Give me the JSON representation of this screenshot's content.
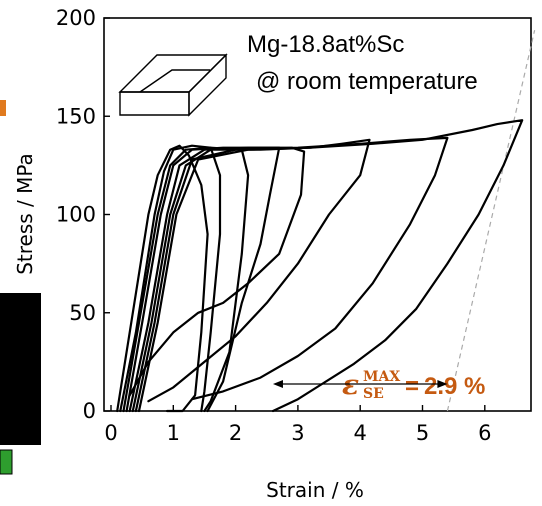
{
  "chart_data": {
    "type": "line",
    "title": "",
    "xlabel": "Strain / %",
    "ylabel": "Stress / MPa",
    "xlim": [
      0,
      7
    ],
    "ylim": [
      0,
      200
    ],
    "xticks": [
      "0",
      "1",
      "2",
      "3",
      "4",
      "5",
      "6"
    ],
    "yticks": [
      "0",
      "50",
      "100",
      "150",
      "200"
    ],
    "grid": false,
    "legend": "none",
    "annotations": {
      "material": "Mg-18.8at%Sc",
      "condition": "@ room temperature",
      "eps_symbol": "ε",
      "eps_sup": "MAX",
      "eps_sub": "SE",
      "eps_equals": "=",
      "eps_value": "2.9 %",
      "eps_range": [
        2.6,
        5.4
      ]
    },
    "colors": {
      "curve": "#000000",
      "highlight": "#C55A11",
      "dashed_line": "#aaaaaa"
    },
    "series": [
      {
        "values": [
          [
            0.1,
            0
          ],
          [
            0.3,
            40
          ],
          [
            0.6,
            100
          ],
          [
            0.75,
            120
          ],
          [
            0.95,
            133
          ],
          [
            1.1,
            135
          ],
          [
            1.25,
            130
          ],
          [
            1.45,
            115
          ],
          [
            1.55,
            90
          ],
          [
            1.45,
            40
          ],
          [
            1.35,
            8
          ],
          [
            1.15,
            0
          ],
          [
            0.9,
            0
          ]
        ]
      },
      {
        "values": [
          [
            0.15,
            0
          ],
          [
            0.4,
            40
          ],
          [
            0.7,
            100
          ],
          [
            0.85,
            122
          ],
          [
            1.0,
            133
          ],
          [
            1.3,
            135
          ],
          [
            1.6,
            134
          ],
          [
            1.75,
            120
          ],
          [
            1.75,
            90
          ],
          [
            1.6,
            40
          ],
          [
            1.5,
            10
          ],
          [
            1.45,
            0
          ]
        ]
      },
      {
        "values": [
          [
            0.2,
            0
          ],
          [
            0.45,
            45
          ],
          [
            0.75,
            100
          ],
          [
            0.95,
            125
          ],
          [
            1.2,
            133
          ],
          [
            1.6,
            134
          ],
          [
            2.1,
            133
          ],
          [
            2.2,
            120
          ],
          [
            2.1,
            80
          ],
          [
            1.9,
            30
          ],
          [
            1.6,
            5
          ],
          [
            1.5,
            0
          ]
        ]
      },
      {
        "values": [
          [
            0.25,
            0
          ],
          [
            0.5,
            45
          ],
          [
            0.8,
            100
          ],
          [
            1.0,
            125
          ],
          [
            1.3,
            133
          ],
          [
            1.8,
            134
          ],
          [
            2.4,
            134
          ],
          [
            2.7,
            134
          ],
          [
            2.55,
            110
          ],
          [
            2.4,
            85
          ],
          [
            2.1,
            55
          ],
          [
            1.8,
            15
          ],
          [
            1.55,
            0
          ]
        ]
      },
      {
        "values": [
          [
            0.3,
            0
          ],
          [
            0.6,
            45
          ],
          [
            0.9,
            100
          ],
          [
            1.1,
            125
          ],
          [
            1.5,
            133
          ],
          [
            2.2,
            134
          ],
          [
            2.9,
            134
          ],
          [
            3.1,
            132
          ],
          [
            3.05,
            110
          ],
          [
            2.7,
            80
          ],
          [
            2.2,
            65
          ],
          [
            1.8,
            55
          ],
          [
            1.4,
            50
          ],
          [
            1.0,
            40
          ],
          [
            0.6,
            25
          ],
          [
            0.3,
            8
          ]
        ]
      },
      {
        "values": [
          [
            0.35,
            0
          ],
          [
            0.65,
            45
          ],
          [
            0.95,
            100
          ],
          [
            1.2,
            125
          ],
          [
            1.6,
            133
          ],
          [
            2.4,
            133
          ],
          [
            3.2,
            134
          ],
          [
            3.7,
            136
          ],
          [
            4.15,
            138
          ],
          [
            4.0,
            120
          ],
          [
            3.5,
            100
          ],
          [
            3.0,
            75
          ],
          [
            2.5,
            55
          ],
          [
            2.0,
            38
          ],
          [
            1.5,
            25
          ],
          [
            1.0,
            12
          ],
          [
            0.6,
            5
          ]
        ]
      },
      {
        "values": [
          [
            0.4,
            0
          ],
          [
            0.7,
            45
          ],
          [
            1.0,
            100
          ],
          [
            1.3,
            128
          ],
          [
            2.0,
            133
          ],
          [
            3.0,
            134
          ],
          [
            4.0,
            136
          ],
          [
            4.8,
            138
          ],
          [
            5.4,
            139
          ],
          [
            5.2,
            120
          ],
          [
            4.8,
            95
          ],
          [
            4.2,
            65
          ],
          [
            3.6,
            42
          ],
          [
            3.0,
            28
          ],
          [
            2.4,
            17
          ],
          [
            1.8,
            10
          ],
          [
            1.3,
            6
          ]
        ]
      },
      {
        "values": [
          [
            0.45,
            0
          ],
          [
            0.75,
            45
          ],
          [
            1.05,
            100
          ],
          [
            1.4,
            128
          ],
          [
            2.2,
            133
          ],
          [
            3.2,
            134
          ],
          [
            4.2,
            136
          ],
          [
            5.0,
            138
          ],
          [
            5.8,
            143
          ],
          [
            6.2,
            146
          ],
          [
            6.6,
            148
          ],
          [
            6.3,
            125
          ],
          [
            5.9,
            100
          ],
          [
            5.4,
            75
          ],
          [
            4.9,
            52
          ],
          [
            4.4,
            36
          ],
          [
            3.9,
            24
          ],
          [
            3.4,
            14
          ],
          [
            3.0,
            6
          ],
          [
            2.6,
            0
          ]
        ]
      }
    ],
    "guide_line": [
      [
        5.4,
        0
      ],
      [
        6.8,
        148
      ]
    ]
  }
}
